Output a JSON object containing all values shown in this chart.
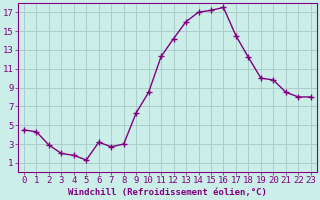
{
  "x": [
    0,
    1,
    2,
    3,
    4,
    5,
    6,
    7,
    8,
    9,
    10,
    11,
    12,
    13,
    14,
    15,
    16,
    17,
    18,
    19,
    20,
    21,
    22,
    23
  ],
  "y": [
    4.5,
    4.3,
    2.9,
    2.0,
    1.8,
    1.3,
    3.2,
    2.7,
    3.0,
    6.3,
    8.5,
    12.3,
    14.2,
    16.0,
    17.0,
    17.2,
    17.5,
    14.5,
    12.2,
    10.0,
    9.8,
    8.5,
    8.0,
    8.0
  ],
  "line_color": "#800080",
  "marker": "+",
  "marker_size": 4,
  "linewidth": 1.0,
  "background_color": "#cceee8",
  "grid_color": "#aacccc",
  "xlabel": "Windchill (Refroidissement éolien,°C)",
  "ylabel": "",
  "xlim": [
    -0.5,
    23.5
  ],
  "ylim": [
    0,
    18
  ],
  "yticks": [
    1,
    3,
    5,
    7,
    9,
    11,
    13,
    15,
    17
  ],
  "xticks": [
    0,
    1,
    2,
    3,
    4,
    5,
    6,
    7,
    8,
    9,
    10,
    11,
    12,
    13,
    14,
    15,
    16,
    17,
    18,
    19,
    20,
    21,
    22,
    23
  ],
  "xlabel_fontsize": 6.5,
  "tick_fontsize": 6.5,
  "axis_color": "#800080",
  "spine_color": "#800080",
  "figsize": [
    3.2,
    2.0
  ],
  "dpi": 100
}
